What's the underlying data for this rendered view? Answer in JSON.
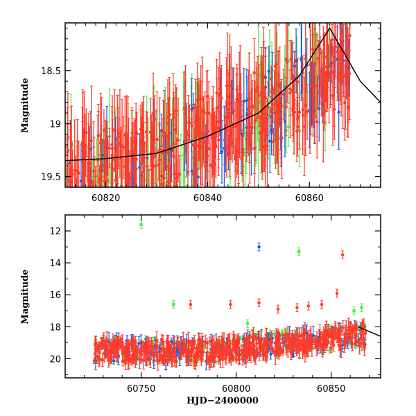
{
  "figure": {
    "xlabel_shared": "HJD−2400000"
  },
  "colors": {
    "green": "#55ee55",
    "blue": "#1e5fe0",
    "red": "#ff3b2a",
    "curve": "#000000"
  },
  "chart_data": [
    {
      "type": "scatter",
      "panel": "top",
      "ylabel": "Magnitude",
      "xlim": [
        60812,
        60874
      ],
      "ylim": [
        19.6,
        18.05
      ],
      "y_inverted": true,
      "x_ticks": [
        60820,
        60840,
        60860
      ],
      "y_ticks": [
        18.5,
        19,
        19.5
      ],
      "y_tick_labels": [
        "18.5",
        "19",
        "19.5"
      ],
      "series": [
        {
          "color_key": "green",
          "marker": "point_errorbar",
          "x_range": [
            60812,
            60868
          ],
          "y_range": [
            18.05,
            19.6
          ]
        },
        {
          "color_key": "blue",
          "marker": "point_errorbar",
          "x_range": [
            60812,
            60868
          ],
          "y_range": [
            18.05,
            19.6
          ]
        },
        {
          "color_key": "red",
          "marker": "point_errorbar",
          "x_range": [
            60812,
            60868
          ],
          "y_range": [
            18.05,
            19.6
          ]
        }
      ],
      "model_curve": {
        "x": [
          60812,
          60820,
          60830,
          60840,
          60850,
          60858,
          60864,
          60870,
          60874
        ],
        "y": [
          19.35,
          19.33,
          19.28,
          19.12,
          18.9,
          18.55,
          18.1,
          18.6,
          18.8
        ]
      }
    },
    {
      "type": "scatter",
      "panel": "bottom",
      "xlabel": "HJD−2400000",
      "ylabel": "Magnitude",
      "xlim": [
        60710,
        60876
      ],
      "ylim": [
        21.2,
        11.0
      ],
      "y_inverted": true,
      "x_ticks": [
        60750,
        60800,
        60850
      ],
      "y_ticks": [
        12,
        14,
        16,
        18,
        20
      ],
      "series": [
        {
          "color_key": "green",
          "marker": "square",
          "x_range": [
            60725,
            60868
          ],
          "y_band": [
            18.5,
            20.2
          ]
        },
        {
          "color_key": "blue",
          "marker": "point_errorbar",
          "x_range": [
            60725,
            60868
          ],
          "y_band": [
            18.5,
            20.2
          ]
        },
        {
          "color_key": "red",
          "marker": "point_errorbar",
          "x_range": [
            60725,
            60868
          ],
          "y_band": [
            18.5,
            20.2
          ]
        }
      ],
      "outliers": [
        {
          "x": 60750,
          "y": 11.6,
          "color_key": "green"
        },
        {
          "x": 60812,
          "y": 13.0,
          "color_key": "blue"
        },
        {
          "x": 60833,
          "y": 13.3,
          "color_key": "green"
        },
        {
          "x": 60856,
          "y": 13.5,
          "color_key": "red"
        },
        {
          "x": 60776,
          "y": 16.6,
          "color_key": "red"
        },
        {
          "x": 60767,
          "y": 16.6,
          "color_key": "green"
        },
        {
          "x": 60853,
          "y": 15.9,
          "color_key": "red"
        },
        {
          "x": 60812,
          "y": 16.5,
          "color_key": "red"
        },
        {
          "x": 60832,
          "y": 16.8,
          "color_key": "red"
        },
        {
          "x": 60866,
          "y": 16.8,
          "color_key": "green"
        },
        {
          "x": 60845,
          "y": 16.6,
          "color_key": "red"
        },
        {
          "x": 60797,
          "y": 16.6,
          "color_key": "red"
        },
        {
          "x": 60862,
          "y": 17.0,
          "color_key": "green"
        },
        {
          "x": 60822,
          "y": 16.9,
          "color_key": "red"
        },
        {
          "x": 60806,
          "y": 17.8,
          "color_key": "green"
        },
        {
          "x": 60838,
          "y": 16.7,
          "color_key": "red"
        }
      ]
    }
  ]
}
